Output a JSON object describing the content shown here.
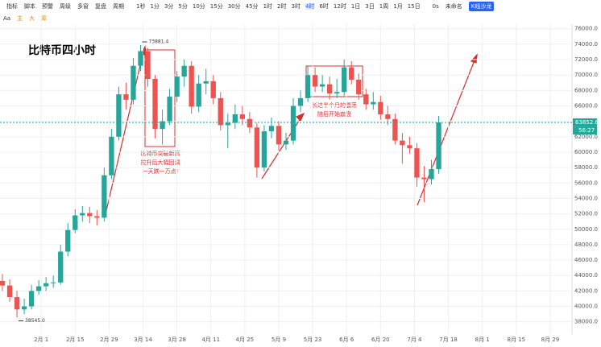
{
  "toolbar": {
    "left": [
      "指标",
      "脚本",
      "预警",
      "周级",
      "多窗",
      "复盘",
      "周期"
    ],
    "periods": [
      "1秒",
      "1分",
      "3分",
      "5分",
      "10分",
      "15分",
      "30分",
      "45分",
      "1时",
      "2时",
      "3时",
      "4时",
      "6时",
      "12时",
      "1日",
      "3日",
      "1周",
      "1月",
      "15日"
    ],
    "right": [
      "0s",
      "未命名",
      "K线沙龙"
    ]
  },
  "drawing_toolbar": [
    "Aa",
    "主",
    "大",
    "筹"
  ],
  "chart_data": {
    "type": "candlestick",
    "title": "比特币四小时",
    "x": [
      "1月 16",
      "1月 19",
      "1月 22",
      "1月 25",
      "1月 28",
      "1月 31",
      "2月 3",
      "2月 6",
      "2月 9",
      "2月 12",
      "2月 15",
      "2月 18",
      "2月 21",
      "2月 24",
      "2月 27",
      "3月 1",
      "3月 4",
      "3月 7",
      "3月 10",
      "3月 13",
      "3月 16",
      "3月 19",
      "3月 22",
      "3月 25",
      "3月 28",
      "3月 31",
      "4月 3",
      "4月 6",
      "4月 9",
      "4月 12",
      "4月 15",
      "4月 18",
      "4月 21",
      "4月 24",
      "4月 27",
      "4月 30",
      "5月 3",
      "5月 6",
      "5月 9",
      "5月 12",
      "5月 15",
      "5月 18",
      "5月 21",
      "5月 24",
      "5月 27",
      "5月 30",
      "6月 2",
      "6月 5",
      "6月 8",
      "6月 11",
      "6月 14",
      "6月 17",
      "6月 20",
      "6月 23",
      "6月 26",
      "6月 29",
      "7月 2",
      "7月 5",
      "7月 8",
      "7月 11",
      "7月 14"
    ],
    "open": [
      43300,
      42700,
      41200,
      39600,
      40000,
      42000,
      42600,
      43000,
      43100,
      47100,
      49900,
      51800,
      52100,
      51700,
      51500,
      57000,
      62000,
      67500,
      66800,
      71200,
      73100,
      69500,
      63000,
      64000,
      67200,
      69800,
      71200,
      65900,
      68900,
      69200,
      67000,
      63500,
      63800,
      64900,
      64300,
      63200,
      58000,
      62700,
      63400,
      61000,
      61500,
      66000,
      67000,
      70000,
      68500,
      68800,
      67600,
      67800,
      71000,
      69400,
      67500,
      66200,
      66500,
      64900,
      64300,
      61500,
      60900,
      60500,
      56700,
      56500,
      57800
    ],
    "high": [
      44200,
      43500,
      42000,
      41000,
      42800,
      43400,
      43800,
      44000,
      48000,
      50800,
      52600,
      53000,
      52900,
      52500,
      58000,
      63000,
      68500,
      69000,
      72200,
      73881.4,
      73500,
      70000,
      65500,
      68200,
      70500,
      72000,
      71800,
      70000,
      70800,
      70000,
      67800,
      65000,
      66200,
      66000,
      65200,
      63800,
      63500,
      64500,
      64000,
      62500,
      67000,
      68000,
      71200,
      71000,
      70000,
      69800,
      69500,
      72000,
      71800,
      70200,
      68200,
      67800,
      67300,
      66000,
      65000,
      62500,
      62000,
      61200,
      58200,
      59000,
      64700
    ],
    "low": [
      42000,
      40600,
      38545,
      39000,
      39600,
      41500,
      42000,
      42400,
      42800,
      46500,
      49500,
      51000,
      50800,
      50500,
      51000,
      56500,
      61500,
      65500,
      66200,
      70500,
      68500,
      61800,
      61000,
      63500,
      66500,
      68500,
      65000,
      65200,
      67500,
      66200,
      62800,
      60500,
      63000,
      63500,
      62500,
      56700,
      57500,
      61800,
      60200,
      60300,
      61000,
      65200,
      66500,
      67800,
      67800,
      66800,
      67000,
      67300,
      68800,
      66800,
      65500,
      65500,
      64200,
      63500,
      61000,
      58500,
      59800,
      55500,
      53500,
      55800,
      57200
    ],
    "close": [
      42700,
      41200,
      39600,
      40000,
      42000,
      42600,
      43000,
      43100,
      47100,
      49900,
      51800,
      52100,
      51700,
      51500,
      57000,
      62000,
      67500,
      66800,
      71200,
      73100,
      69500,
      63000,
      64000,
      67200,
      69800,
      71200,
      65900,
      68900,
      69200,
      67000,
      63500,
      63800,
      64900,
      64300,
      63200,
      58000,
      62700,
      63400,
      61000,
      61500,
      66000,
      67000,
      70000,
      68500,
      68800,
      67600,
      67800,
      71000,
      69400,
      67500,
      66200,
      66500,
      64900,
      64300,
      61500,
      60900,
      60500,
      56700,
      56500,
      57800,
      63852.6
    ],
    "up_color": "#26a69a",
    "down_color": "#ef5350",
    "xlim": [
      "1月 15",
      "9月 7"
    ],
    "x_ticks": [
      "2月 1",
      "2月 15",
      "2月 29",
      "3月 14",
      "3月 28",
      "4月 11",
      "4月 25",
      "5月 9",
      "5月 23",
      "6月 6",
      "6月 20",
      "7月 4",
      "7月 18",
      "8月 1",
      "8月 15",
      "8月 29"
    ],
    "ylim": [
      36400,
      76600
    ],
    "yticks": [
      {
        "value": 38000,
        "label": "38000.0"
      },
      {
        "value": 40000,
        "label": "40000.0"
      },
      {
        "value": 42000,
        "label": "42000.0"
      },
      {
        "value": 44000,
        "label": "44000.0"
      },
      {
        "value": 46000,
        "label": "46000.0"
      },
      {
        "value": 48000,
        "label": "48000.0"
      },
      {
        "value": 50000,
        "label": "50000.0"
      },
      {
        "value": 52000,
        "label": "52000.0"
      },
      {
        "value": 54000,
        "label": "54000.0"
      },
      {
        "value": 56000,
        "label": "56000.0"
      },
      {
        "value": 58000,
        "label": "58000.0"
      },
      {
        "value": 60000,
        "label": "60000.0"
      },
      {
        "value": 62000,
        "label": "62000.0"
      },
      {
        "value": 64000,
        "label": "64000.0"
      },
      {
        "value": 66000,
        "label": "66000.0"
      },
      {
        "value": 68000,
        "label": "68000.0"
      },
      {
        "value": 70000,
        "label": "70000.0"
      },
      {
        "value": 72000,
        "label": "72000.0"
      },
      {
        "value": 74000,
        "label": "74000.0"
      },
      {
        "value": 76000,
        "label": "76000.0"
      }
    ],
    "grid": true,
    "high_marker": 73881.4,
    "low_marker": {
      "value": 38545,
      "label": "38545.0"
    },
    "last_price": 63852.6,
    "countdown": "56:27",
    "annotations": [
      [
        "比特币突破新高",
        "拉升后大幅回调",
        "一天跌一万点!"
      ],
      [
        "长达半个月的震荡",
        "随后开始崩盘"
      ]
    ]
  }
}
